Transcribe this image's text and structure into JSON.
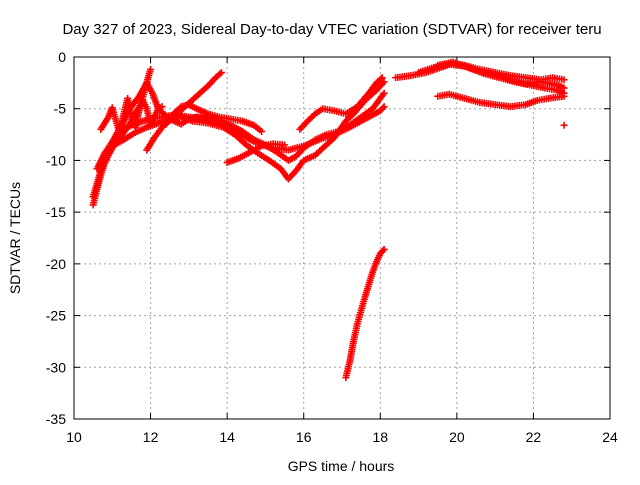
{
  "chart_data": {
    "type": "scatter",
    "title": "Day 327 of 2023, Sidereal Day-to-day VTEC variation (SDTVAR) for receiver teru",
    "xlabel": "GPS time / hours",
    "ylabel": "SDTVAR / TECUs",
    "xlim": [
      10,
      24
    ],
    "ylim": [
      -35,
      0
    ],
    "x_ticks": [
      10,
      12,
      14,
      16,
      18,
      20,
      22,
      24
    ],
    "y_ticks": [
      0,
      -5,
      -10,
      -15,
      -20,
      -25,
      -30,
      -35
    ],
    "x_tick_labels": [
      "10",
      "12",
      "14",
      "16",
      "18",
      "20",
      "22",
      "24"
    ],
    "y_tick_labels": [
      "0",
      "-5",
      "-10",
      "-15",
      "-20",
      "-25",
      "-30",
      "-35"
    ],
    "grid": true,
    "marker": "plus",
    "color": "#ff0000",
    "series": [
      {
        "tracks": [
          [
            [
              10.5,
              -14.3
            ],
            [
              10.6,
              -12.8
            ],
            [
              10.7,
              -11.4
            ],
            [
              10.8,
              -10.3
            ],
            [
              10.9,
              -9.5
            ],
            [
              11.0,
              -8.8
            ],
            [
              11.2,
              -7.8
            ],
            [
              11.4,
              -6.8
            ],
            [
              11.6,
              -5.5
            ],
            [
              11.75,
              -4.5
            ],
            [
              11.85,
              -3.2
            ],
            [
              11.95,
              -1.8
            ],
            [
              12.0,
              -1.2
            ]
          ],
          [
            [
              10.5,
              -13.5
            ],
            [
              10.7,
              -11.0
            ],
            [
              10.9,
              -9.0
            ],
            [
              11.1,
              -7.5
            ],
            [
              11.3,
              -6.2
            ],
            [
              11.5,
              -4.8
            ],
            [
              11.7,
              -3.8
            ],
            [
              11.9,
              -2.5
            ],
            [
              12.05,
              -3.5
            ],
            [
              12.2,
              -5.0
            ],
            [
              12.5,
              -6.0
            ],
            [
              12.8,
              -6.5
            ],
            [
              13.0,
              -6.0
            ],
            [
              13.2,
              -5.8
            ],
            [
              13.6,
              -6.0
            ],
            [
              14.0,
              -6.5
            ],
            [
              14.3,
              -7.3
            ],
            [
              14.6,
              -8.0
            ],
            [
              14.9,
              -8.5
            ],
            [
              15.2,
              -8.8
            ],
            [
              15.6,
              -9.0
            ],
            [
              16.0,
              -8.6
            ],
            [
              16.4,
              -8.0
            ],
            [
              16.8,
              -7.5
            ],
            [
              17.2,
              -6.8
            ],
            [
              17.6,
              -6.0
            ],
            [
              18.0,
              -5.2
            ],
            [
              18.1,
              -4.8
            ]
          ],
          [
            [
              10.6,
              -10.8
            ],
            [
              10.8,
              -9.3
            ],
            [
              11.0,
              -8.2
            ],
            [
              11.2,
              -7.2
            ],
            [
              11.5,
              -6.6
            ],
            [
              11.8,
              -6.2
            ],
            [
              12.0,
              -6.0
            ],
            [
              12.3,
              -5.8
            ],
            [
              12.6,
              -5.6
            ],
            [
              13.0,
              -5.8
            ],
            [
              13.4,
              -6.0
            ],
            [
              13.8,
              -6.3
            ],
            [
              14.1,
              -6.6
            ],
            [
              14.4,
              -7.2
            ],
            [
              14.7,
              -8.0
            ],
            [
              15.0,
              -8.5
            ],
            [
              15.3,
              -9.2
            ],
            [
              15.6,
              -10.0
            ],
            [
              15.8,
              -9.6
            ],
            [
              16.0,
              -8.8
            ],
            [
              16.3,
              -8.0
            ],
            [
              16.6,
              -7.5
            ],
            [
              16.9,
              -7.2
            ],
            [
              17.2,
              -6.6
            ],
            [
              17.5,
              -5.8
            ],
            [
              17.8,
              -5.0
            ],
            [
              18.1,
              -3.5
            ]
          ],
          [
            [
              10.8,
              -9.5
            ],
            [
              11.0,
              -8.6
            ],
            [
              11.3,
              -8.0
            ],
            [
              11.6,
              -7.3
            ],
            [
              11.9,
              -6.8
            ],
            [
              12.2,
              -6.4
            ],
            [
              12.5,
              -6.0
            ],
            [
              12.8,
              -5.8
            ],
            [
              13.1,
              -6.2
            ],
            [
              13.5,
              -6.4
            ],
            [
              13.9,
              -6.8
            ],
            [
              14.2,
              -7.5
            ],
            [
              14.5,
              -8.5
            ],
            [
              14.8,
              -9.3
            ],
            [
              15.1,
              -10.0
            ],
            [
              15.4,
              -10.8
            ],
            [
              15.6,
              -11.8
            ],
            [
              15.8,
              -11.0
            ],
            [
              16.0,
              -10.0
            ],
            [
              16.3,
              -9.5
            ],
            [
              16.5,
              -8.8
            ],
            [
              16.8,
              -7.8
            ],
            [
              17.1,
              -6.2
            ],
            [
              17.3,
              -5.5
            ],
            [
              17.6,
              -4.2
            ],
            [
              17.9,
              -3.2
            ],
            [
              18.1,
              -2.4
            ]
          ],
          [
            [
              10.7,
              -7.0
            ],
            [
              10.9,
              -5.8
            ],
            [
              11.0,
              -4.9
            ],
            [
              11.1,
              -6.2
            ],
            [
              11.2,
              -7.5
            ],
            [
              11.3,
              -5.5
            ],
            [
              11.4,
              -4.0
            ],
            [
              11.5,
              -5.8
            ],
            [
              11.6,
              -6.8
            ],
            [
              11.7,
              -5.2
            ],
            [
              11.8,
              -4.2
            ],
            [
              11.9,
              -5.0
            ],
            [
              12.0,
              -6.5
            ],
            [
              12.1,
              -5.8
            ],
            [
              12.2,
              -5.0
            ],
            [
              12.3,
              -4.8
            ]
          ],
          [
            [
              11.9,
              -9.0
            ],
            [
              12.1,
              -7.8
            ],
            [
              12.3,
              -6.8
            ],
            [
              12.6,
              -5.8
            ],
            [
              12.9,
              -4.8
            ],
            [
              13.2,
              -3.8
            ],
            [
              13.5,
              -2.8
            ],
            [
              13.7,
              -2.0
            ],
            [
              13.85,
              -1.5
            ]
          ],
          [
            [
              12.4,
              -6.5
            ],
            [
              12.6,
              -5.5
            ],
            [
              12.8,
              -4.8
            ],
            [
              13.0,
              -4.6
            ],
            [
              13.2,
              -5.0
            ],
            [
              13.5,
              -5.5
            ],
            [
              13.8,
              -5.8
            ],
            [
              14.1,
              -6.0
            ],
            [
              14.4,
              -6.2
            ],
            [
              14.7,
              -6.6
            ],
            [
              14.9,
              -7.2
            ]
          ],
          [
            [
              14.0,
              -10.2
            ],
            [
              14.3,
              -9.8
            ],
            [
              14.6,
              -9.2
            ],
            [
              14.9,
              -8.6
            ],
            [
              15.2,
              -8.4
            ],
            [
              15.5,
              -8.5
            ]
          ],
          [
            [
              15.9,
              -7.0
            ],
            [
              16.1,
              -6.2
            ],
            [
              16.3,
              -5.5
            ],
            [
              16.5,
              -5.0
            ],
            [
              16.8,
              -5.2
            ],
            [
              17.1,
              -5.5
            ],
            [
              17.4,
              -4.8
            ],
            [
              17.7,
              -3.5
            ],
            [
              17.9,
              -2.5
            ],
            [
              18.05,
              -2.0
            ]
          ],
          [
            [
              17.1,
              -31.0
            ],
            [
              17.2,
              -29.5
            ],
            [
              17.3,
              -27.5
            ],
            [
              17.4,
              -25.8
            ],
            [
              17.5,
              -24.5
            ],
            [
              17.6,
              -23.2
            ],
            [
              17.7,
              -22.0
            ],
            [
              17.8,
              -20.8
            ],
            [
              17.9,
              -19.8
            ],
            [
              18.0,
              -19.0
            ],
            [
              18.1,
              -18.6
            ]
          ],
          [
            [
              18.4,
              -2.0
            ],
            [
              18.8,
              -1.8
            ],
            [
              19.2,
              -1.5
            ],
            [
              19.6,
              -1.0
            ],
            [
              19.9,
              -0.6
            ],
            [
              20.2,
              -0.8
            ],
            [
              20.6,
              -1.2
            ],
            [
              21.0,
              -1.5
            ],
            [
              21.4,
              -1.8
            ],
            [
              21.8,
              -2.0
            ],
            [
              22.2,
              -2.2
            ],
            [
              22.5,
              -2.0
            ],
            [
              22.8,
              -2.2
            ]
          ],
          [
            [
              19.0,
              -1.5
            ],
            [
              19.4,
              -1.0
            ],
            [
              19.8,
              -0.7
            ],
            [
              20.2,
              -0.9
            ],
            [
              20.6,
              -1.4
            ],
            [
              21.0,
              -1.7
            ],
            [
              21.4,
              -2.2
            ],
            [
              21.8,
              -2.6
            ],
            [
              22.2,
              -2.4
            ],
            [
              22.6,
              -2.7
            ],
            [
              22.8,
              -3.0
            ]
          ],
          [
            [
              19.5,
              -0.8
            ],
            [
              19.9,
              -0.5
            ],
            [
              20.3,
              -1.0
            ],
            [
              20.7,
              -1.6
            ],
            [
              21.1,
              -2.0
            ],
            [
              21.5,
              -2.4
            ],
            [
              21.9,
              -2.7
            ],
            [
              22.3,
              -3.0
            ],
            [
              22.6,
              -3.2
            ],
            [
              22.8,
              -3.5
            ]
          ],
          [
            [
              19.5,
              -3.8
            ],
            [
              19.8,
              -3.6
            ],
            [
              20.2,
              -4.0
            ],
            [
              20.6,
              -4.4
            ],
            [
              21.0,
              -4.6
            ],
            [
              21.4,
              -4.8
            ],
            [
              21.8,
              -4.6
            ],
            [
              22.1,
              -4.2
            ],
            [
              22.4,
              -4.0
            ],
            [
              22.8,
              -3.8
            ]
          ],
          [
            [
              22.8,
              -6.6
            ]
          ]
        ]
      }
    ]
  }
}
